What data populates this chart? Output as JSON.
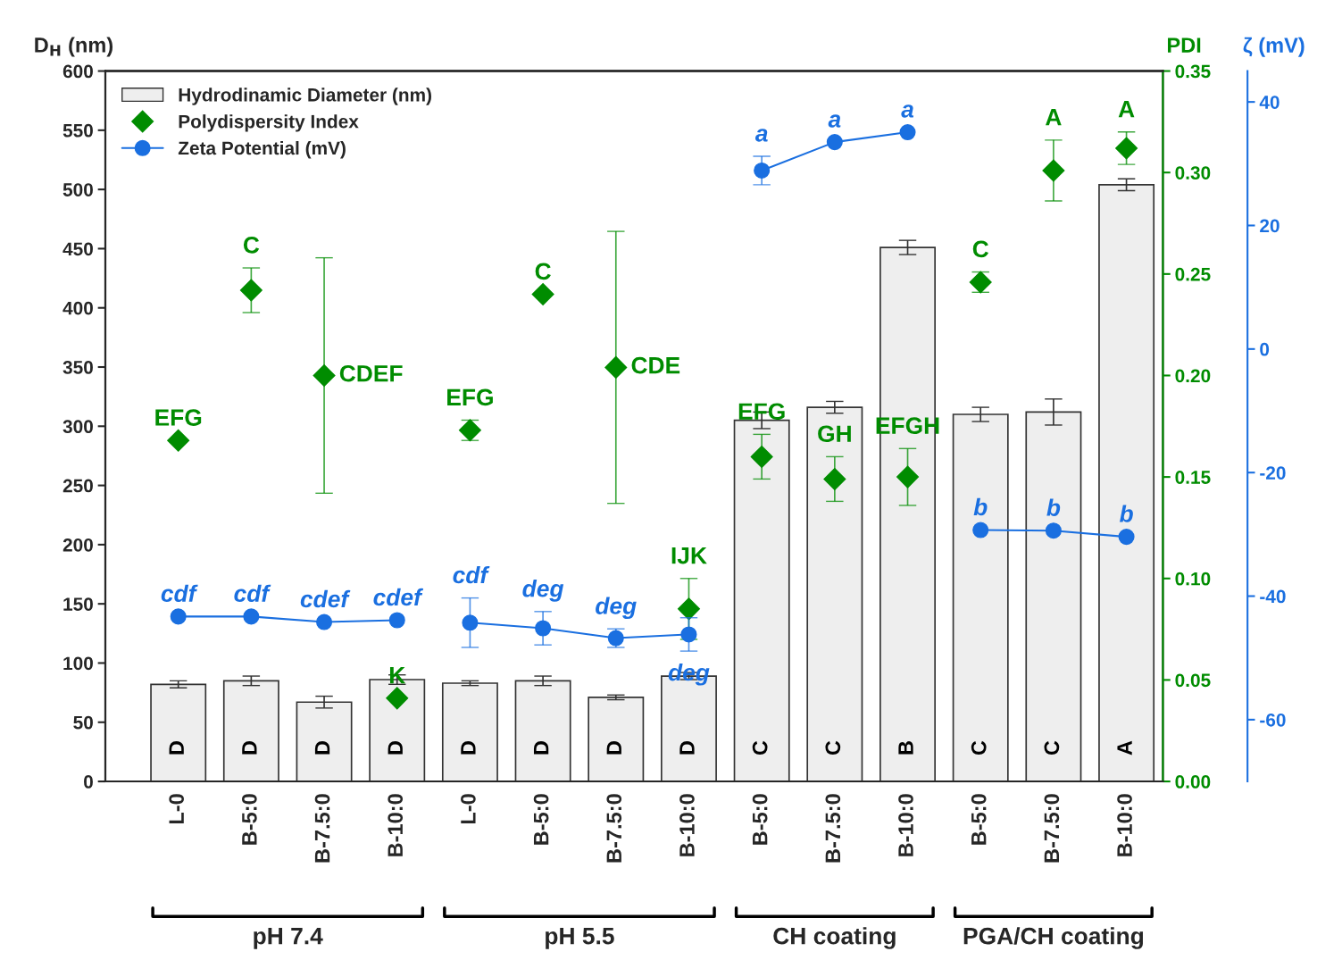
{
  "chart_data": {
    "type": "bar",
    "categories": [
      "L-0",
      "B-5:0",
      "B-7.5:0",
      "B-10:0",
      "L-0",
      "B-5:0",
      "B-7.5:0",
      "B-10:0",
      "B-5:0",
      "B-7.5:0",
      "B-10:0",
      "B-5:0",
      "B-7.5:0",
      "B-10:0"
    ],
    "ylabel": "D$_{H}$ (nm)",
    "y2label": "PDI",
    "y3label": "ζ (mV)",
    "ylim": [
      0,
      600
    ],
    "yticks": [
      0,
      50,
      100,
      150,
      200,
      250,
      300,
      350,
      400,
      450,
      500,
      550,
      600
    ],
    "y2lim": [
      0,
      0.35
    ],
    "y2ticks": [
      {
        "value": 0,
        "label": "0.00"
      },
      {
        "value": 0.05,
        "label": "0.05"
      },
      {
        "value": 0.1,
        "label": "0.10"
      },
      {
        "value": 0.15,
        "label": "0.15"
      },
      {
        "value": 0.2,
        "label": "0.20"
      },
      {
        "value": 0.25,
        "label": "0.25"
      },
      {
        "value": 0.3,
        "label": "0.30"
      },
      {
        "value": 0.35,
        "label": "0.35"
      }
    ],
    "y3lim": [
      -70,
      45
    ],
    "y3ticks": [
      -60,
      -40,
      -20,
      0,
      20,
      40
    ],
    "annotations": [
      "pH 7.4",
      "pH 5.5",
      "CH coating",
      "PGA/CH coating"
    ],
    "legend": "top left",
    "grid": false,
    "series": [
      {
        "name": "Hydrodinamic Diameter (nm)",
        "color": "#eeeeee",
        "values": [
          82,
          85,
          67,
          86,
          83,
          85,
          71,
          89,
          305,
          316,
          451,
          310,
          312,
          504
        ],
        "errors": [
          3,
          4,
          5,
          4,
          2,
          4,
          2,
          3,
          7,
          5,
          6,
          6,
          11,
          5
        ],
        "value_labels": [
          "D",
          "D",
          "D",
          "D",
          "D",
          "D",
          "D",
          "D",
          "C",
          "C",
          "B",
          "C",
          "C",
          "A"
        ]
      },
      {
        "name": "Polydispersity Index",
        "type": "scatter",
        "axis": "y2",
        "marker": "diamond",
        "color": "#008c00",
        "values": [
          0.168,
          0.242,
          0.2,
          0.041,
          0.173,
          0.24,
          0.204,
          0.085,
          0.16,
          0.149,
          0.15,
          0.246,
          0.301,
          0.312
        ],
        "errors": [
          null,
          0.011,
          0.058,
          null,
          0.005,
          null,
          0.067,
          0.015,
          0.011,
          0.011,
          0.014,
          0.005,
          0.015,
          0.008
        ],
        "value_labels": [
          "EFG",
          "C",
          "CDEF",
          "K",
          "EFG",
          "C",
          "CDE",
          "IJK",
          "EFG",
          "GH",
          "EFGH",
          "C",
          "A",
          "A"
        ]
      },
      {
        "name": "Zeta Potential (mV)",
        "type": "line",
        "axis": "y3",
        "marker": "circle",
        "color": "#1a6fe0",
        "values": [
          -43.3,
          -43.3,
          -44.2,
          -43.9,
          null,
          null,
          null,
          null,
          null,
          null,
          null,
          null,
          null,
          null
        ],
        "errors": [
          null,
          null,
          null,
          null,
          null,
          null,
          null,
          null,
          null,
          null,
          null,
          null,
          null,
          null
        ],
        "value_labels": [
          "cdf",
          "cdf",
          "cdef",
          "cdef",
          null,
          null,
          null,
          null,
          null,
          null,
          null,
          null,
          null,
          null
        ]
      },
      {
        "type": "line",
        "axis": "y3",
        "marker": "circle",
        "color": "#1a6fe0",
        "values": [
          null,
          null,
          null,
          null,
          -44.3,
          -45.2,
          -46.8,
          -46.2,
          null,
          null,
          null,
          null,
          null,
          null
        ],
        "errors": [
          null,
          null,
          null,
          null,
          4,
          2.7,
          1.5,
          2.7,
          null,
          null,
          null,
          null,
          null,
          null
        ],
        "value_labels": [
          null,
          null,
          null,
          null,
          "cdf",
          "deg",
          "deg",
          "deg",
          null,
          null,
          null,
          null,
          null,
          null
        ]
      },
      {
        "type": "line",
        "axis": "y3",
        "marker": "circle",
        "color": "#1a6fe0",
        "values": [
          null,
          null,
          null,
          null,
          null,
          null,
          null,
          null,
          28.9,
          33.5,
          35.1,
          null,
          null,
          null
        ],
        "errors": [
          null,
          null,
          null,
          null,
          null,
          null,
          null,
          null,
          2.3,
          null,
          null,
          null,
          null,
          null
        ],
        "value_labels": [
          null,
          null,
          null,
          null,
          null,
          null,
          null,
          null,
          "a",
          "a",
          "a",
          null,
          null,
          null
        ]
      },
      {
        "type": "line",
        "axis": "y3",
        "marker": "circle",
        "color": "#1a6fe0",
        "values": [
          null,
          null,
          null,
          null,
          null,
          null,
          null,
          null,
          null,
          null,
          null,
          -29.3,
          -29.4,
          -30.4
        ],
        "errors": [
          null,
          null,
          null,
          null,
          null,
          null,
          null,
          null,
          null,
          null,
          null,
          null,
          null,
          null
        ],
        "value_labels": [
          null,
          null,
          null,
          null,
          null,
          null,
          null,
          null,
          null,
          null,
          null,
          "b",
          "b",
          "b"
        ]
      }
    ]
  }
}
